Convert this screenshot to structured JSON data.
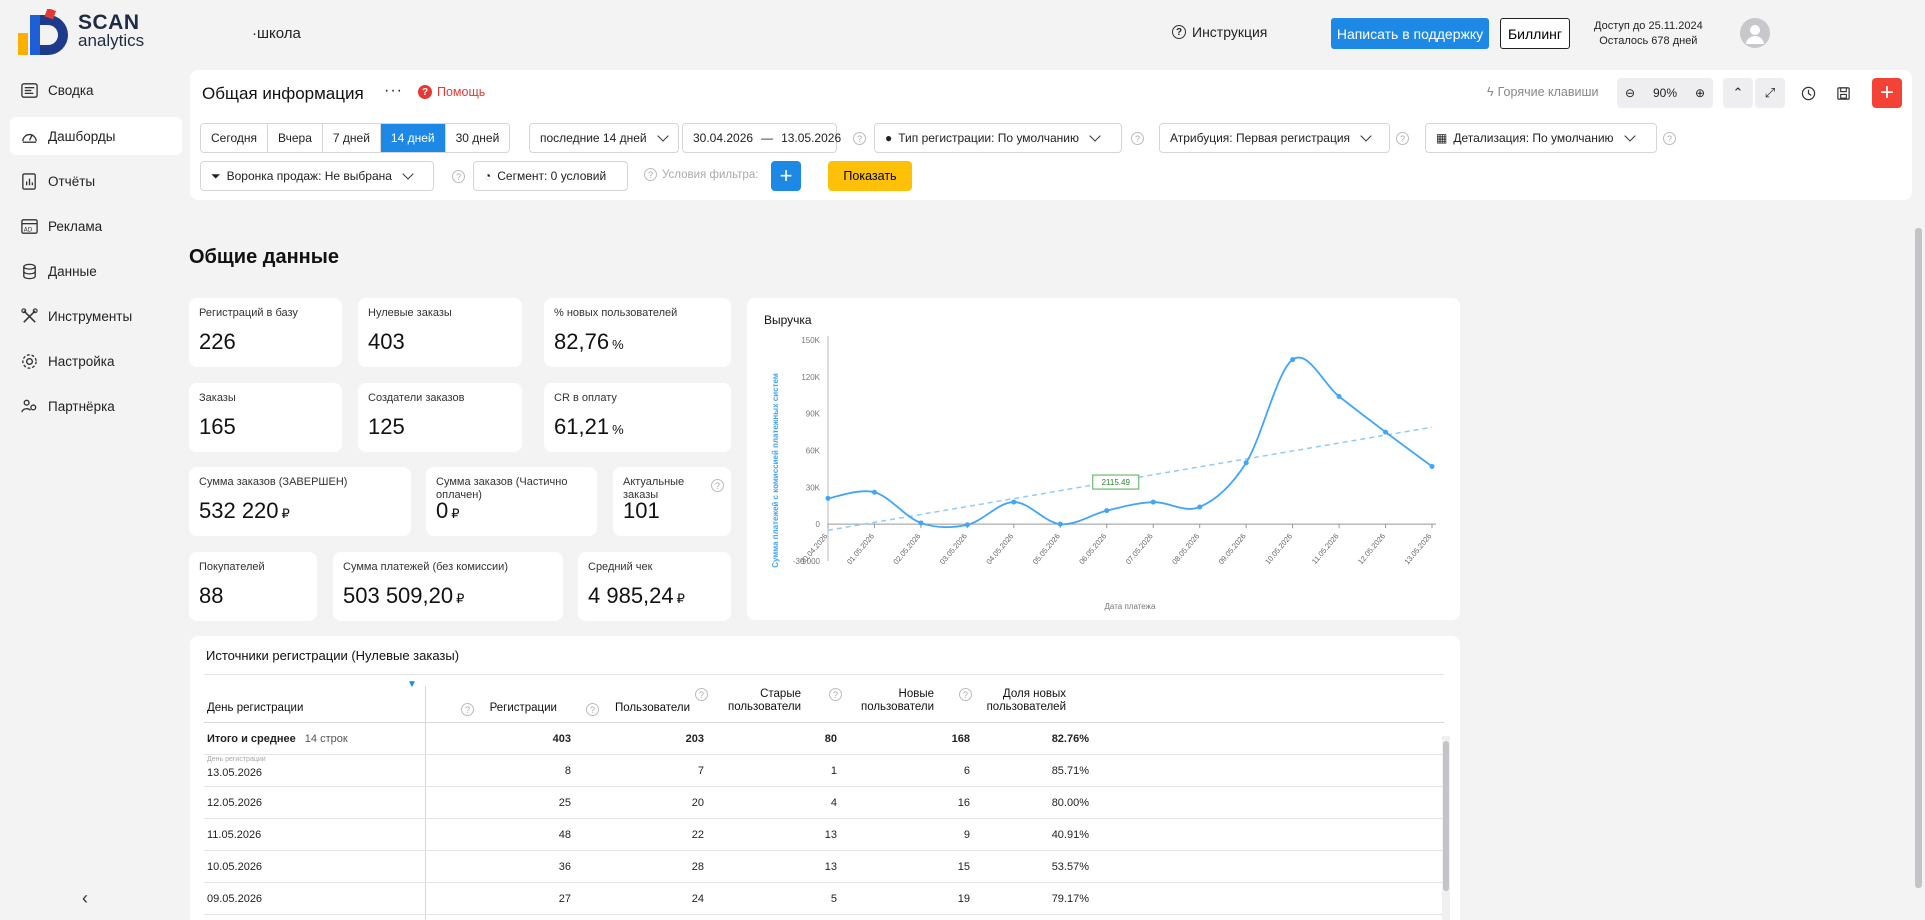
{
  "header": {
    "logo_line1": "SCAN",
    "logo_line2": "analytics",
    "school": "·школа",
    "instruction": "Инструкция",
    "support_button": "Написать в поддержку",
    "billing_button": "Биллинг",
    "access_until": "Доступ до 25.11.2024",
    "days_left": "Осталось 678 дней"
  },
  "sidebar": {
    "items": [
      {
        "label": "Сводка",
        "icon": "summary-icon"
      },
      {
        "label": "Дашборды",
        "icon": "dashboard-icon"
      },
      {
        "label": "Отчёты",
        "icon": "reports-icon"
      },
      {
        "label": "Реклама",
        "icon": "ads-icon"
      },
      {
        "label": "Данные",
        "icon": "database-icon"
      },
      {
        "label": "Инструменты",
        "icon": "tools-icon"
      },
      {
        "label": "Настройка",
        "icon": "settings-icon"
      },
      {
        "label": "Партнёрка",
        "icon": "partner-icon"
      }
    ],
    "active_index": 1
  },
  "filters": {
    "title": "Общая информация",
    "help": "Помощь",
    "hotkeys": "Горячие клавиши",
    "zoom": "90%",
    "periods": [
      "Сегодня",
      "Вчера",
      "7 дней",
      "14 дней",
      "30 дней"
    ],
    "selected_period": "14 дней",
    "range_select": "последние 14 дней",
    "date_from": "30.04.2026",
    "date_sep": "—",
    "date_to": "13.05.2026",
    "reg_type": "Тип регистрации: По умолчанию",
    "attribution": "Атрибуция: Первая регистрация",
    "detail": "Детализация:  По умолчанию",
    "funnel": "Воронка продаж: Не выбрана",
    "segment": "Сегмент: 0 условий",
    "conditions": "Условия фильтра:",
    "show": "Показать"
  },
  "main": {
    "section_title": "Общие данные",
    "kpis": [
      {
        "label": "Регистраций в базу",
        "value": "226",
        "unit": ""
      },
      {
        "label": "Нулевые заказы",
        "value": "403",
        "unit": ""
      },
      {
        "label": "% новых пользователей",
        "value": "82,76",
        "unit": "%"
      },
      {
        "label": "Заказы",
        "value": "165",
        "unit": ""
      },
      {
        "label": "Создатели заказов",
        "value": "125",
        "unit": ""
      },
      {
        "label": "CR в оплату",
        "value": "61,21",
        "unit": "%"
      },
      {
        "label": "Сумма заказов (ЗАВЕРШЕН)",
        "value": "532 220",
        "unit": "₽"
      },
      {
        "label": "Сумма заказов (Частично оплачен)",
        "value": "0",
        "unit": "₽"
      },
      {
        "label": "Актуальные заказы",
        "value": "101",
        "unit": ""
      },
      {
        "label": "Покупателей",
        "value": "88",
        "unit": ""
      },
      {
        "label": "Сумма платежей (без комиссии)",
        "value": "503 509,20",
        "unit": "₽"
      },
      {
        "label": "Средний чек",
        "value": "4 985,24",
        "unit": "₽"
      }
    ]
  },
  "chart_data": {
    "type": "line",
    "title": "Выручка",
    "xlabel": "Дата платежа",
    "ylabel": "Сумма платежей с комиссией платежных систем",
    "yticks": [
      "150K",
      "120K",
      "90K",
      "60K",
      "30K",
      "0",
      "-30 000"
    ],
    "ylim": [
      -30000,
      150000
    ],
    "x": [
      "30.04.2026",
      "01.05.2026",
      "02.05.2026",
      "03.05.2026",
      "04.05.2026",
      "05.05.2026",
      "06.05.2026",
      "07.05.2026",
      "08.05.2026",
      "09.05.2026",
      "10.05.2026",
      "11.05.2026",
      "12.05.2026",
      "13.05.2026"
    ],
    "series": [
      {
        "values": [
          21000,
          26000,
          1000,
          -500,
          18000,
          0,
          11000,
          18000,
          14000,
          50000,
          134000,
          104000,
          75000,
          47000
        ]
      }
    ],
    "trendline": {
      "start": -5000,
      "end": 79000
    },
    "annotation": "2115.49",
    "grid": false,
    "color": "#42a5f5",
    "trend_color": "#90caf9"
  },
  "table": {
    "title": "Источники регистрации (Нулевые заказы)",
    "columns": [
      "День регистрации",
      "Регистрации",
      "Пользователи",
      "Старые пользователи",
      "Новые пользователи",
      "Доля новых пользователей"
    ],
    "total_label": "Итого и среднее",
    "total_count": "14 строк",
    "total": [
      "403",
      "203",
      "80",
      "168",
      "82.76%"
    ],
    "row_hint": "День регистрации",
    "rows": [
      [
        "13.05.2026",
        "8",
        "7",
        "1",
        "6",
        "85.71%"
      ],
      [
        "12.05.2026",
        "25",
        "20",
        "4",
        "16",
        "80.00%"
      ],
      [
        "11.05.2026",
        "48",
        "22",
        "13",
        "9",
        "40.91%"
      ],
      [
        "10.05.2026",
        "36",
        "28",
        "13",
        "15",
        "53.57%"
      ],
      [
        "09.05.2026",
        "27",
        "24",
        "5",
        "19",
        "79.17%"
      ]
    ]
  }
}
